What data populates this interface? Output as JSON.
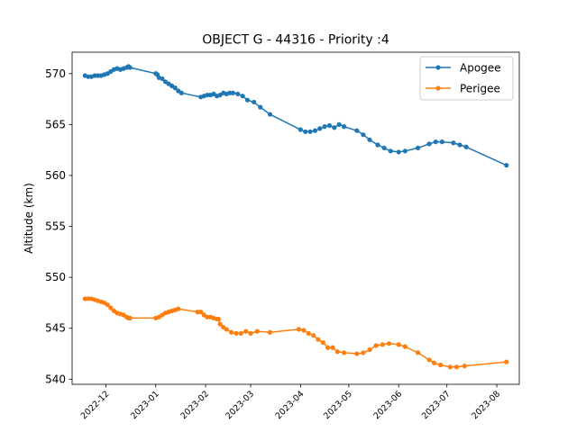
{
  "chart_data": {
    "type": "line",
    "title": "OBJECT G - 44316 - Priority :4",
    "xlabel": "",
    "ylabel": "Altitude (km)",
    "x_ticks": [
      "2022-12",
      "2023-01",
      "2023-02",
      "2023-03",
      "2023-04",
      "2023-05",
      "2023-06",
      "2023-07",
      "2023-08"
    ],
    "y_ticks": [
      540,
      545,
      550,
      555,
      560,
      565,
      570
    ],
    "xlim": [
      "2022-11-10",
      "2023-08-15"
    ],
    "ylim": [
      539.5,
      572.1
    ],
    "legend_position": "top-right",
    "grid": false,
    "series": [
      {
        "name": "Apogee",
        "color": "#1f77b4",
        "marker": "circle",
        "points": [
          [
            "2022-11-18",
            569.8
          ],
          [
            "2022-11-20",
            569.7
          ],
          [
            "2022-11-22",
            569.7
          ],
          [
            "2022-11-24",
            569.8
          ],
          [
            "2022-11-26",
            569.8
          ],
          [
            "2022-11-28",
            569.8
          ],
          [
            "2022-11-30",
            569.9
          ],
          [
            "2022-12-02",
            570.0
          ],
          [
            "2022-12-04",
            570.2
          ],
          [
            "2022-12-06",
            570.4
          ],
          [
            "2022-12-08",
            570.5
          ],
          [
            "2022-12-10",
            570.4
          ],
          [
            "2022-12-12",
            570.5
          ],
          [
            "2022-12-14",
            570.6
          ],
          [
            "2022-12-15",
            570.7
          ],
          [
            "2022-12-16",
            570.6
          ],
          [
            "2023-01-01",
            570.0
          ],
          [
            "2023-01-02",
            569.9
          ],
          [
            "2023-01-03",
            569.6
          ],
          [
            "2023-01-05",
            569.5
          ],
          [
            "2023-01-07",
            569.2
          ],
          [
            "2023-01-09",
            569.0
          ],
          [
            "2023-01-11",
            568.8
          ],
          [
            "2023-01-13",
            568.6
          ],
          [
            "2023-01-15",
            568.3
          ],
          [
            "2023-01-17",
            568.1
          ],
          [
            "2023-01-29",
            567.7
          ],
          [
            "2023-01-31",
            567.8
          ],
          [
            "2023-02-02",
            567.9
          ],
          [
            "2023-02-04",
            567.9
          ],
          [
            "2023-02-06",
            568.0
          ],
          [
            "2023-02-08",
            567.8
          ],
          [
            "2023-02-10",
            567.9
          ],
          [
            "2023-02-12",
            568.1
          ],
          [
            "2023-02-14",
            568.0
          ],
          [
            "2023-02-16",
            568.1
          ],
          [
            "2023-02-18",
            568.1
          ],
          [
            "2023-02-21",
            568.0
          ],
          [
            "2023-02-24",
            567.8
          ],
          [
            "2023-02-27",
            567.4
          ],
          [
            "2023-03-03",
            567.2
          ],
          [
            "2023-03-07",
            566.7
          ],
          [
            "2023-03-13",
            566.0
          ],
          [
            "2023-04-01",
            564.5
          ],
          [
            "2023-04-04",
            564.3
          ],
          [
            "2023-04-07",
            564.3
          ],
          [
            "2023-04-10",
            564.4
          ],
          [
            "2023-04-13",
            564.6
          ],
          [
            "2023-04-16",
            564.8
          ],
          [
            "2023-04-19",
            564.9
          ],
          [
            "2023-04-22",
            564.7
          ],
          [
            "2023-04-25",
            565.0
          ],
          [
            "2023-04-28",
            564.8
          ],
          [
            "2023-05-06",
            564.4
          ],
          [
            "2023-05-10",
            564.0
          ],
          [
            "2023-05-14",
            563.5
          ],
          [
            "2023-05-19",
            563.0
          ],
          [
            "2023-05-23",
            562.7
          ],
          [
            "2023-05-27",
            562.4
          ],
          [
            "2023-06-01",
            562.3
          ],
          [
            "2023-06-05",
            562.4
          ],
          [
            "2023-06-13",
            562.7
          ],
          [
            "2023-06-20",
            563.1
          ],
          [
            "2023-06-24",
            563.3
          ],
          [
            "2023-06-28",
            563.3
          ],
          [
            "2023-07-05",
            563.2
          ],
          [
            "2023-07-09",
            563.0
          ],
          [
            "2023-07-13",
            562.8
          ],
          [
            "2023-08-07",
            561.0
          ]
        ]
      },
      {
        "name": "Perigee",
        "color": "#ff7f0e",
        "marker": "circle",
        "points": [
          [
            "2022-11-18",
            547.9
          ],
          [
            "2022-11-20",
            547.9
          ],
          [
            "2022-11-22",
            547.9
          ],
          [
            "2022-11-24",
            547.8
          ],
          [
            "2022-11-26",
            547.7
          ],
          [
            "2022-11-28",
            547.6
          ],
          [
            "2022-11-30",
            547.5
          ],
          [
            "2022-12-02",
            547.3
          ],
          [
            "2022-12-04",
            547.0
          ],
          [
            "2022-12-06",
            546.7
          ],
          [
            "2022-12-08",
            546.5
          ],
          [
            "2022-12-10",
            546.4
          ],
          [
            "2022-12-12",
            546.3
          ],
          [
            "2022-12-14",
            546.1
          ],
          [
            "2022-12-15",
            546.0
          ],
          [
            "2022-12-16",
            546.0
          ],
          [
            "2023-01-01",
            546.0
          ],
          [
            "2023-01-03",
            546.1
          ],
          [
            "2023-01-05",
            546.3
          ],
          [
            "2023-01-07",
            546.5
          ],
          [
            "2023-01-09",
            546.6
          ],
          [
            "2023-01-11",
            546.7
          ],
          [
            "2023-01-13",
            546.8
          ],
          [
            "2023-01-15",
            546.9
          ],
          [
            "2023-01-27",
            546.6
          ],
          [
            "2023-01-29",
            546.6
          ],
          [
            "2023-01-31",
            546.3
          ],
          [
            "2023-02-02",
            546.1
          ],
          [
            "2023-02-04",
            546.1
          ],
          [
            "2023-02-06",
            546.0
          ],
          [
            "2023-02-08",
            545.9
          ],
          [
            "2023-02-09",
            545.9
          ],
          [
            "2023-02-10",
            545.4
          ],
          [
            "2023-02-12",
            545.1
          ],
          [
            "2023-02-14",
            544.9
          ],
          [
            "2023-02-17",
            544.6
          ],
          [
            "2023-02-20",
            544.5
          ],
          [
            "2023-02-23",
            544.5
          ],
          [
            "2023-02-26",
            544.7
          ],
          [
            "2023-03-01",
            544.5
          ],
          [
            "2023-03-05",
            544.7
          ],
          [
            "2023-03-13",
            544.6
          ],
          [
            "2023-03-31",
            544.9
          ],
          [
            "2023-04-03",
            544.8
          ],
          [
            "2023-04-06",
            544.5
          ],
          [
            "2023-04-09",
            544.3
          ],
          [
            "2023-04-12",
            543.9
          ],
          [
            "2023-04-15",
            543.6
          ],
          [
            "2023-04-18",
            543.1
          ],
          [
            "2023-04-21",
            543.1
          ],
          [
            "2023-04-24",
            542.7
          ],
          [
            "2023-04-28",
            542.6
          ],
          [
            "2023-05-06",
            542.5
          ],
          [
            "2023-05-10",
            542.6
          ],
          [
            "2023-05-14",
            542.9
          ],
          [
            "2023-05-18",
            543.3
          ],
          [
            "2023-05-22",
            543.4
          ],
          [
            "2023-05-26",
            543.5
          ],
          [
            "2023-06-01",
            543.4
          ],
          [
            "2023-06-05",
            543.2
          ],
          [
            "2023-06-13",
            542.6
          ],
          [
            "2023-06-20",
            541.9
          ],
          [
            "2023-06-23",
            541.6
          ],
          [
            "2023-06-27",
            541.4
          ],
          [
            "2023-07-03",
            541.2
          ],
          [
            "2023-07-07",
            541.2
          ],
          [
            "2023-07-12",
            541.3
          ],
          [
            "2023-08-07",
            541.7
          ]
        ]
      }
    ]
  }
}
